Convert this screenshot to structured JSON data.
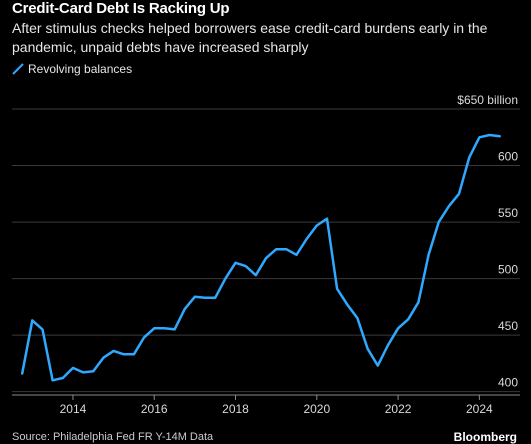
{
  "header": {
    "title": "Credit-Card Debt Is Racking Up",
    "subtitle": "After stimulus checks helped borrowers ease credit-card burdens early in the pandemic, unpaid debts have increased sharply"
  },
  "footer": {
    "source": "Source: Philadelphia Fed FR Y-14M Data",
    "brand": "Bloomberg"
  },
  "colors": {
    "background": "#000000",
    "line": "#2fa8ff",
    "grid": "#3a3a3a",
    "text": "#ffffff"
  },
  "chart_data": {
    "type": "line",
    "title": "Credit-Card Debt Is Racking Up",
    "subtitle": "After stimulus checks helped borrowers ease credit-card burdens early in the pandemic, unpaid debts have increased sharply",
    "xlabel": "",
    "ylabel": "",
    "grid": true,
    "legend_position": "top-left",
    "series": [
      {
        "name": "Revolving balances",
        "color": "#2fa8ff",
        "x": [
          2012.75,
          2013.0,
          2013.25,
          2013.5,
          2013.75,
          2014.0,
          2014.25,
          2014.5,
          2014.75,
          2015.0,
          2015.25,
          2015.5,
          2015.75,
          2016.0,
          2016.25,
          2016.5,
          2016.75,
          2017.0,
          2017.25,
          2017.5,
          2017.75,
          2018.0,
          2018.25,
          2018.5,
          2018.75,
          2019.0,
          2019.25,
          2019.5,
          2019.75,
          2020.0,
          2020.25,
          2020.5,
          2020.75,
          2021.0,
          2021.25,
          2021.5,
          2021.75,
          2022.0,
          2022.25,
          2022.5,
          2022.75,
          2023.0,
          2023.25,
          2023.5,
          2023.75,
          2024.0,
          2024.25,
          2024.5
        ],
        "values": [
          416,
          463,
          455,
          410,
          412,
          421,
          417,
          418,
          430,
          436,
          433,
          433,
          448,
          456,
          456,
          455,
          473,
          484,
          483,
          483,
          500,
          514,
          511,
          503,
          518,
          526,
          526,
          521,
          535,
          547,
          553,
          491,
          477,
          465,
          438,
          423,
          441,
          456,
          464,
          479,
          521,
          550,
          564,
          575,
          607,
          625,
          627,
          626
        ]
      }
    ],
    "x_ticks": [
      2014,
      2016,
      2018,
      2020,
      2022,
      2024
    ],
    "x_tick_labels": [
      "2014",
      "2016",
      "2018",
      "2020",
      "2022",
      "2024"
    ],
    "y_ticks": [
      400,
      450,
      500,
      550,
      600,
      650
    ],
    "y_tick_labels": [
      "400",
      "450",
      "500",
      "550",
      "600",
      "$650 billion"
    ],
    "xlim": [
      2012.5,
      2025.0
    ],
    "ylim": [
      397,
      658
    ]
  }
}
